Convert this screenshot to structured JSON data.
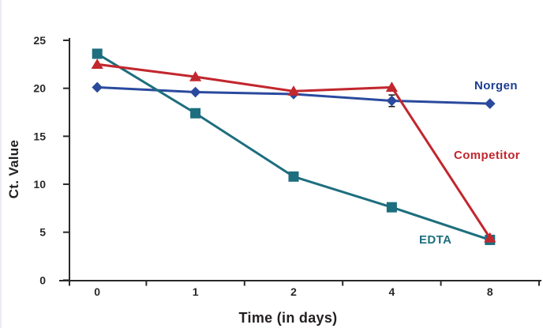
{
  "page": {
    "background_color": "#ffffff",
    "left_border_color": "#eceaf4"
  },
  "chart_data": {
    "type": "line",
    "title": "",
    "xlabel": "Time (in days)",
    "ylabel": "Ct. Value",
    "categories": [
      "0",
      "1",
      "2",
      "4",
      "8"
    ],
    "ylim": [
      0,
      25
    ],
    "yticks": [
      0,
      5,
      10,
      15,
      20,
      25
    ],
    "grid": "off",
    "legend_position": "inline-labels-right",
    "axis_color": "#2b2829",
    "tick_text_color": "#2b2829",
    "series": [
      {
        "name": "Norgen",
        "marker": "diamond",
        "color": "#2a4a9e",
        "label_color": "#1b3e92",
        "values": [
          20.1,
          19.6,
          19.4,
          18.7,
          18.4
        ],
        "error_bars": [
          null,
          null,
          null,
          0.6,
          null
        ]
      },
      {
        "name": "Competitor",
        "marker": "triangle",
        "color": "#c2272e",
        "label_color": "#c2272e",
        "values": [
          22.5,
          21.2,
          19.7,
          20.1,
          4.4
        ],
        "error_bars": [
          null,
          null,
          null,
          null,
          null
        ]
      },
      {
        "name": "EDTA",
        "marker": "square",
        "color": "#1d6e7e",
        "label_color": "#1d6e7e",
        "values": [
          23.6,
          17.4,
          10.8,
          7.6,
          4.2
        ],
        "error_bars": [
          null,
          null,
          null,
          null,
          null
        ]
      }
    ]
  }
}
